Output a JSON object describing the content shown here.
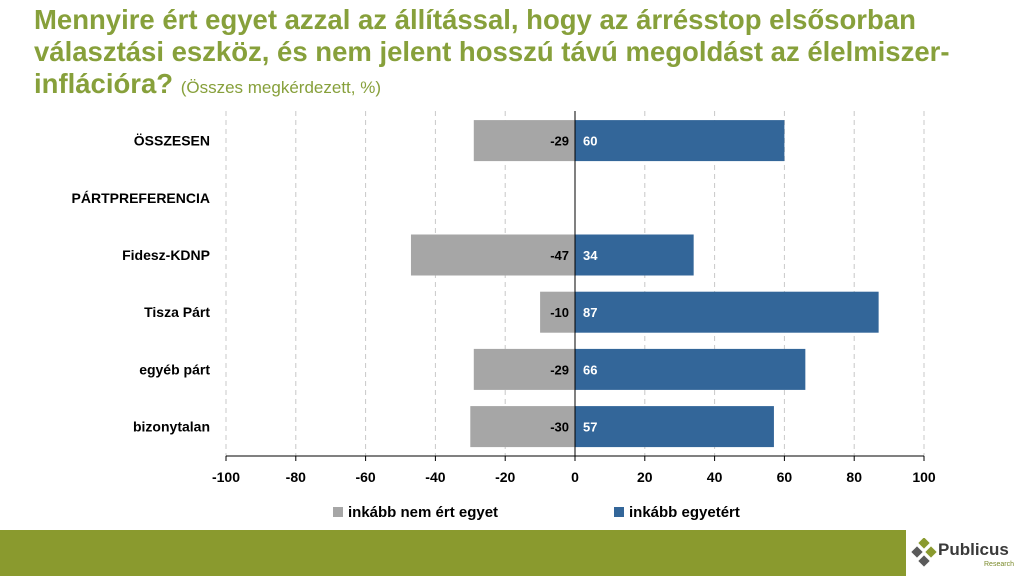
{
  "title": {
    "text": "Mennyire ért egyet azzal az állítással, hogy az árrésstop elsősorban választási eszköz, és nem jelent hosszú távú megoldást az élelmiszer-inflációra?",
    "subtitle": "(Összes megkérdezett, %)"
  },
  "chart_data": {
    "type": "bar",
    "orientation": "horizontal",
    "stacked": "diverging",
    "categories": [
      "ÖSSZESEN",
      "PÁRTPREFERENCIA",
      "Fidesz-KDNP",
      "Tisza Párt",
      "egyéb párt",
      "bizonytalan"
    ],
    "series": [
      {
        "name": "inkább nem ért egyet",
        "color": "#a6a6a6",
        "values": [
          -29,
          null,
          -47,
          -10,
          -29,
          -30
        ]
      },
      {
        "name": "inkább egyetért",
        "color": "#336699",
        "values": [
          60,
          null,
          34,
          87,
          66,
          57
        ]
      }
    ],
    "xlim": [
      -100,
      100
    ],
    "xticks": [
      -100,
      -80,
      -60,
      -40,
      -20,
      0,
      20,
      40,
      60,
      80,
      100
    ],
    "grid": true,
    "legend_position": "bottom"
  },
  "colors": {
    "title": "#87a03b",
    "footer": "#8a9a2e",
    "negative": "#a6a6a6",
    "positive": "#336699"
  },
  "logo": {
    "name": "Publicus",
    "sub": "Research"
  }
}
